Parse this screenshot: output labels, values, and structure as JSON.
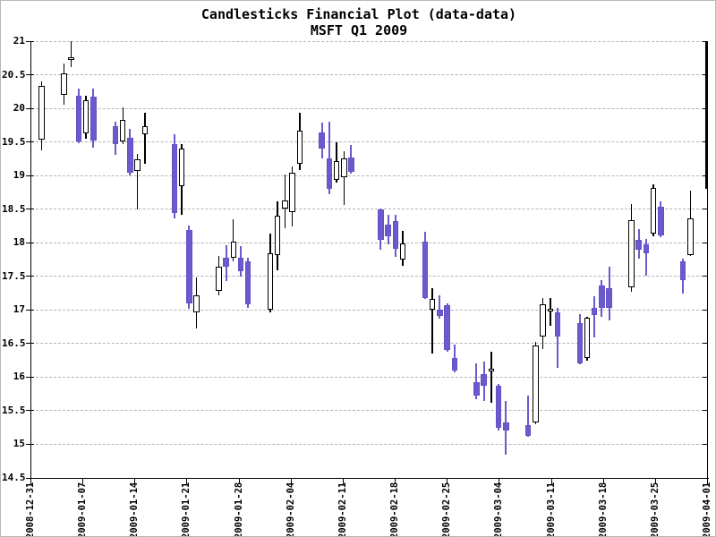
{
  "title": "Candlesticks Financial Plot (data-data)",
  "subtitle": "MSFT Q1 2009",
  "colors": {
    "down_fill": "#6a5acd",
    "down_border": "#6152c6",
    "up_fill": "#ffffff",
    "up_border": "#000000",
    "wick_up": "#000000",
    "wick_down": "#6a5acd",
    "grid": "#b4b4b4",
    "axis": "#000000",
    "background": "#ffffff"
  },
  "chart_data": {
    "type": "candlestick",
    "title": "Candlesticks Financial Plot (data-data)",
    "subtitle": "MSFT Q1 2009",
    "ylim": [
      14.5,
      21
    ],
    "grid": "dashed-horizontal",
    "y_tick_labels": [
      "21",
      "20.5",
      "20",
      "19.5",
      "19",
      "18.5",
      "18",
      "17.5",
      "17",
      "16.5",
      "16",
      "15.5",
      "15",
      "14.5"
    ],
    "x_tick_labels": [
      "2008-12-31",
      "2009-01-07",
      "2009-01-14",
      "2009-01-21",
      "2009-01-28",
      "2009-02-04",
      "2009-02-11",
      "2009-02-18",
      "2009-02-25",
      "2009-03-04",
      "2009-03-11",
      "2009-03-18",
      "2009-03-25",
      "2009-04-01"
    ],
    "columns": [
      "date",
      "open",
      "high",
      "low",
      "close"
    ],
    "ohlc": [
      [
        "2009-01-02",
        19.53,
        20.4,
        19.37,
        20.33
      ],
      [
        "2009-01-05",
        20.2,
        20.67,
        20.06,
        20.52
      ],
      [
        "2009-01-06",
        20.75,
        21.0,
        20.61,
        20.76
      ],
      [
        "2009-01-07",
        20.19,
        20.29,
        19.48,
        19.51
      ],
      [
        "2009-01-08",
        19.63,
        20.19,
        19.55,
        20.12
      ],
      [
        "2009-01-09",
        20.17,
        20.3,
        19.41,
        19.52
      ],
      [
        "2009-01-12",
        19.74,
        19.8,
        19.31,
        19.47
      ],
      [
        "2009-01-13",
        19.51,
        20.01,
        19.47,
        19.83
      ],
      [
        "2009-01-14",
        19.56,
        19.7,
        19.0,
        19.04
      ],
      [
        "2009-01-15",
        19.07,
        19.32,
        18.5,
        19.24
      ],
      [
        "2009-01-16",
        19.62,
        19.93,
        19.18,
        19.73
      ],
      [
        "2009-01-20",
        19.47,
        19.61,
        18.36,
        18.44
      ],
      [
        "2009-01-21",
        18.84,
        19.47,
        18.42,
        19.4
      ],
      [
        "2009-01-22",
        18.19,
        18.25,
        17.02,
        17.1
      ],
      [
        "2009-01-23",
        16.96,
        17.49,
        16.73,
        17.22
      ],
      [
        "2009-01-26",
        17.29,
        17.8,
        17.22,
        17.64
      ],
      [
        "2009-01-27",
        17.78,
        17.96,
        17.43,
        17.64
      ],
      [
        "2009-01-28",
        17.78,
        18.35,
        17.73,
        18.02
      ],
      [
        "2009-01-29",
        17.78,
        17.95,
        17.5,
        17.58
      ],
      [
        "2009-01-30",
        17.73,
        17.78,
        17.03,
        17.08
      ],
      [
        "2009-02-02",
        17.0,
        18.13,
        16.97,
        17.84
      ],
      [
        "2009-02-03",
        17.82,
        18.62,
        17.59,
        18.4
      ],
      [
        "2009-02-04",
        18.51,
        19.01,
        18.21,
        18.63
      ],
      [
        "2009-02-05",
        18.45,
        19.13,
        18.24,
        19.04
      ],
      [
        "2009-02-06",
        19.18,
        19.94,
        19.08,
        19.67
      ],
      [
        "2009-02-09",
        19.64,
        19.79,
        19.25,
        19.4
      ],
      [
        "2009-02-10",
        19.25,
        19.8,
        18.72,
        18.8
      ],
      [
        "2009-02-11",
        18.93,
        19.5,
        18.89,
        19.21
      ],
      [
        "2009-02-12",
        18.98,
        19.36,
        18.56,
        19.25
      ],
      [
        "2009-02-13",
        19.27,
        19.46,
        19.03,
        19.06
      ],
      [
        "2009-02-17",
        18.49,
        18.51,
        17.9,
        18.04
      ],
      [
        "2009-02-18",
        18.27,
        18.42,
        17.97,
        18.09
      ],
      [
        "2009-02-19",
        18.32,
        18.41,
        17.79,
        17.91
      ],
      [
        "2009-02-20",
        17.75,
        18.18,
        17.65,
        17.99
      ],
      [
        "2009-02-23",
        18.01,
        18.16,
        17.16,
        17.18
      ],
      [
        "2009-02-24",
        17.0,
        17.33,
        16.35,
        17.16
      ],
      [
        "2009-02-25",
        17.01,
        17.22,
        16.87,
        16.91
      ],
      [
        "2009-02-26",
        17.07,
        17.1,
        16.38,
        16.4
      ],
      [
        "2009-02-27",
        16.28,
        16.49,
        16.07,
        16.1
      ],
      [
        "2009-03-02",
        15.93,
        16.21,
        15.67,
        15.73
      ],
      [
        "2009-03-03",
        16.04,
        16.23,
        15.64,
        15.87
      ],
      [
        "2009-03-04",
        16.1,
        16.38,
        15.62,
        16.12
      ],
      [
        "2009-03-05",
        15.87,
        15.9,
        15.21,
        15.25
      ],
      [
        "2009-03-06",
        15.33,
        15.64,
        14.84,
        15.2
      ],
      [
        "2009-03-09",
        15.29,
        15.73,
        15.11,
        15.13
      ],
      [
        "2009-03-10",
        15.33,
        16.53,
        15.3,
        16.47
      ],
      [
        "2009-03-11",
        16.6,
        17.18,
        16.42,
        17.08
      ],
      [
        "2009-03-12",
        17.0,
        17.18,
        16.76,
        17.02
      ],
      [
        "2009-03-13",
        16.96,
        17.03,
        16.14,
        16.6
      ],
      [
        "2009-03-16",
        16.8,
        16.94,
        16.19,
        16.21
      ],
      [
        "2009-03-17",
        16.29,
        16.9,
        16.24,
        16.88
      ],
      [
        "2009-03-18",
        17.03,
        17.21,
        16.59,
        16.92
      ],
      [
        "2009-03-19",
        17.37,
        17.44,
        16.9,
        17.03
      ],
      [
        "2009-03-20",
        17.32,
        17.65,
        16.85,
        17.03
      ],
      [
        "2009-03-23",
        17.34,
        18.58,
        17.27,
        18.33
      ],
      [
        "2009-03-24",
        18.04,
        18.2,
        17.76,
        17.89
      ],
      [
        "2009-03-25",
        17.97,
        18.05,
        17.51,
        17.84
      ],
      [
        "2009-03-26",
        18.13,
        18.87,
        18.1,
        18.82
      ],
      [
        "2009-03-27",
        18.53,
        18.62,
        18.08,
        18.11
      ],
      [
        "2009-03-30",
        17.73,
        17.76,
        17.24,
        17.44
      ],
      [
        "2009-03-31",
        17.82,
        18.78,
        17.8,
        18.36
      ]
    ],
    "clipped_last": {
      "date": "2009-04-01",
      "visible_top_value": 21.0,
      "visible_bottom_value": 18.8,
      "note": "candle clipped at right plot edge"
    }
  }
}
